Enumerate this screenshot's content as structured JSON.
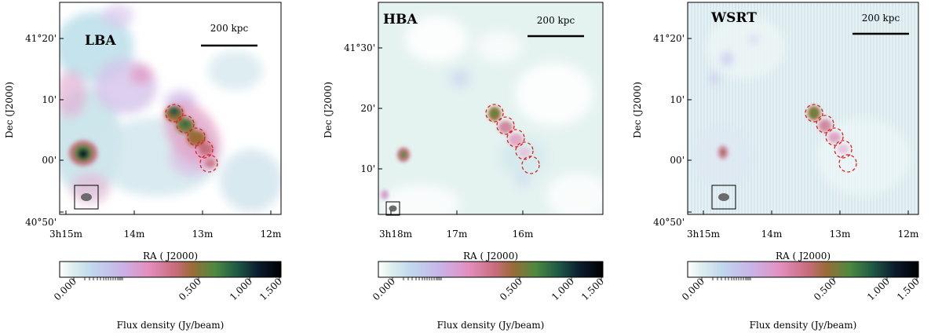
{
  "colors": {
    "colormap": [
      "#ffffff",
      "#dceeed",
      "#bfd7ee",
      "#c9b2e8",
      "#e38fc0",
      "#c86c7c",
      "#9a6b36",
      "#4f8a40",
      "#1f5a45",
      "#0b1a2e",
      "#000000"
    ],
    "circle": "#e02020",
    "beam": "#6b6b6b",
    "frame": "#000000"
  },
  "panels": [
    {
      "label": "LBA",
      "scalebar_label": "200 kpc",
      "dec_ticks": [
        "41°20'",
        "10'",
        "00'",
        "40°50'"
      ],
      "ra_ticks": [
        "3h15m",
        "14m",
        "13m",
        "12m"
      ],
      "xlabel": "RA ( J2000)",
      "ylabel": "Dec (J2000)",
      "colorbar_ticks": [
        "0.000",
        "0.500",
        "1.000",
        "1.500"
      ],
      "colorbar_label": "Flux density (Jy/beam)"
    },
    {
      "label": "HBA",
      "scalebar_label": "200 kpc",
      "dec_ticks": [
        "41°30'",
        "20'",
        "10'"
      ],
      "ra_ticks": [
        "3h18m",
        "17m",
        "16m"
      ],
      "xlabel": "RA ( J2000)",
      "ylabel": "Dec (J2000)",
      "colorbar_ticks": [
        "0.000",
        "0.500",
        "1.000",
        "1.500"
      ],
      "colorbar_label": "Flux density (Jy/beam)"
    },
    {
      "label": "WSRT",
      "scalebar_label": "200 kpc",
      "dec_ticks": [
        "41°20'",
        "10'",
        "00'",
        "40°50'"
      ],
      "ra_ticks": [
        "3h15m",
        "14m",
        "13m",
        "12m"
      ],
      "xlabel": "RA ( J2000)",
      "ylabel": "Dec (J2000)",
      "colorbar_ticks": [
        "0.000",
        "0.500",
        "1.000",
        "1.500"
      ],
      "colorbar_label": "Flux density (Jy/beam)"
    }
  ]
}
